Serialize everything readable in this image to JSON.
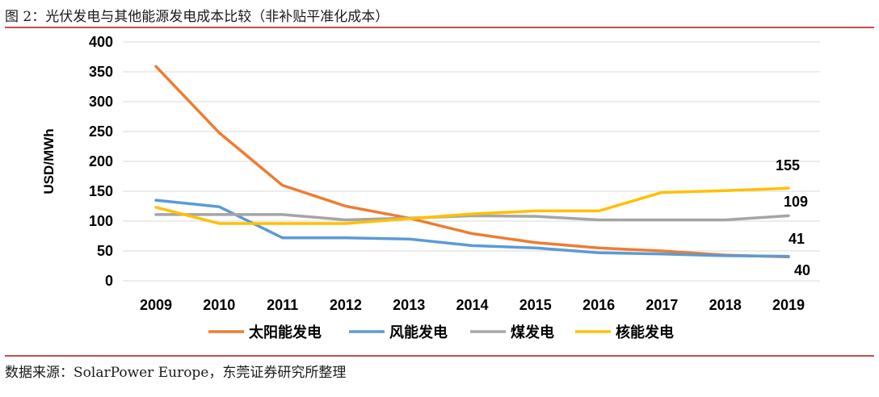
{
  "figure_title": "图 2：光伏发电与其他能源发电成本比较（非补贴平准化成本）",
  "source_note": "数据来源：SolarPower Europe，东莞证券研究所整理",
  "chart_data": {
    "type": "line",
    "title": "",
    "xlabel": "",
    "ylabel": "USD/MWh",
    "ylim": [
      0,
      400
    ],
    "yticks": [
      0,
      50,
      100,
      150,
      200,
      250,
      300,
      350,
      400
    ],
    "grid": true,
    "legend_position": "bottom",
    "categories": [
      "2009",
      "2010",
      "2011",
      "2012",
      "2013",
      "2014",
      "2015",
      "2016",
      "2017",
      "2018",
      "2019"
    ],
    "series": [
      {
        "name": "太阳能发电",
        "color": "#ed7d31",
        "values": [
          359,
          248,
          160,
          125,
          105,
          79,
          64,
          55,
          50,
          43,
          40
        ],
        "end_label": "40"
      },
      {
        "name": "风能发电",
        "color": "#5b9bd5",
        "values": [
          135,
          124,
          72,
          72,
          70,
          59,
          55,
          47,
          45,
          42,
          41
        ],
        "end_label": "41"
      },
      {
        "name": "煤发电",
        "color": "#a5a5a5",
        "values": [
          111,
          111,
          111,
          102,
          105,
          109,
          108,
          102,
          102,
          102,
          109
        ],
        "end_label": "109"
      },
      {
        "name": "核能发电",
        "color": "#ffc000",
        "values": [
          123,
          96,
          96,
          96,
          104,
          112,
          117,
          117,
          148,
          151,
          155
        ],
        "end_label": "155"
      }
    ]
  }
}
